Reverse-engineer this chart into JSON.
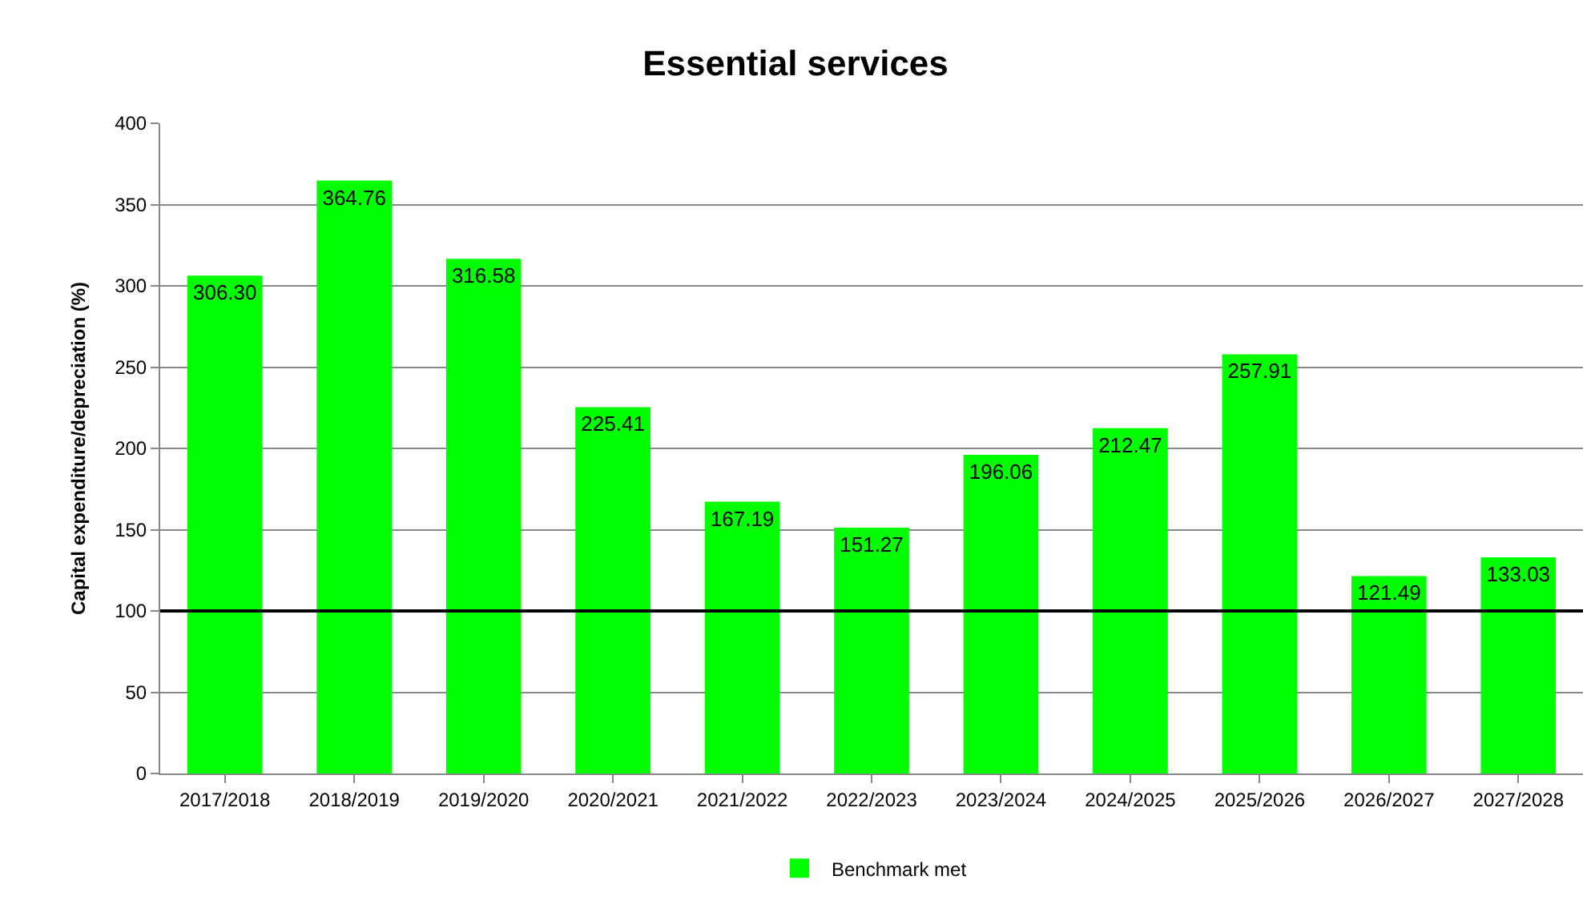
{
  "chart_data": {
    "type": "bar",
    "title": "Essential services",
    "ylabel": "Capital expenditure/depreciation (%)",
    "categories": [
      "2017/2018",
      "2018/2019",
      "2019/2020",
      "2020/2021",
      "2021/2022",
      "2022/2023",
      "2023/2024",
      "2024/2025",
      "2025/2026",
      "2026/2027",
      "2027/2028"
    ],
    "series": [
      {
        "name": "Benchmark met",
        "color": "#00ff00",
        "values": [
          306.3,
          364.76,
          316.58,
          225.41,
          167.19,
          151.27,
          196.06,
          212.47,
          257.91,
          121.49,
          133.03
        ]
      }
    ],
    "value_labels": [
      "306.30",
      "364.76",
      "316.58",
      "225.41",
      "167.19",
      "151.27",
      "196.06",
      "212.47",
      "257.91",
      "121.49",
      "133.03"
    ],
    "ylim": [
      0,
      400
    ],
    "yticks": [
      0,
      50,
      100,
      150,
      200,
      250,
      300,
      350,
      400
    ],
    "grid": "y",
    "legend": "bottom",
    "ref_lines": [
      {
        "axis": "y",
        "value": 100,
        "color": "#000000",
        "line_style": "solid"
      }
    ]
  }
}
